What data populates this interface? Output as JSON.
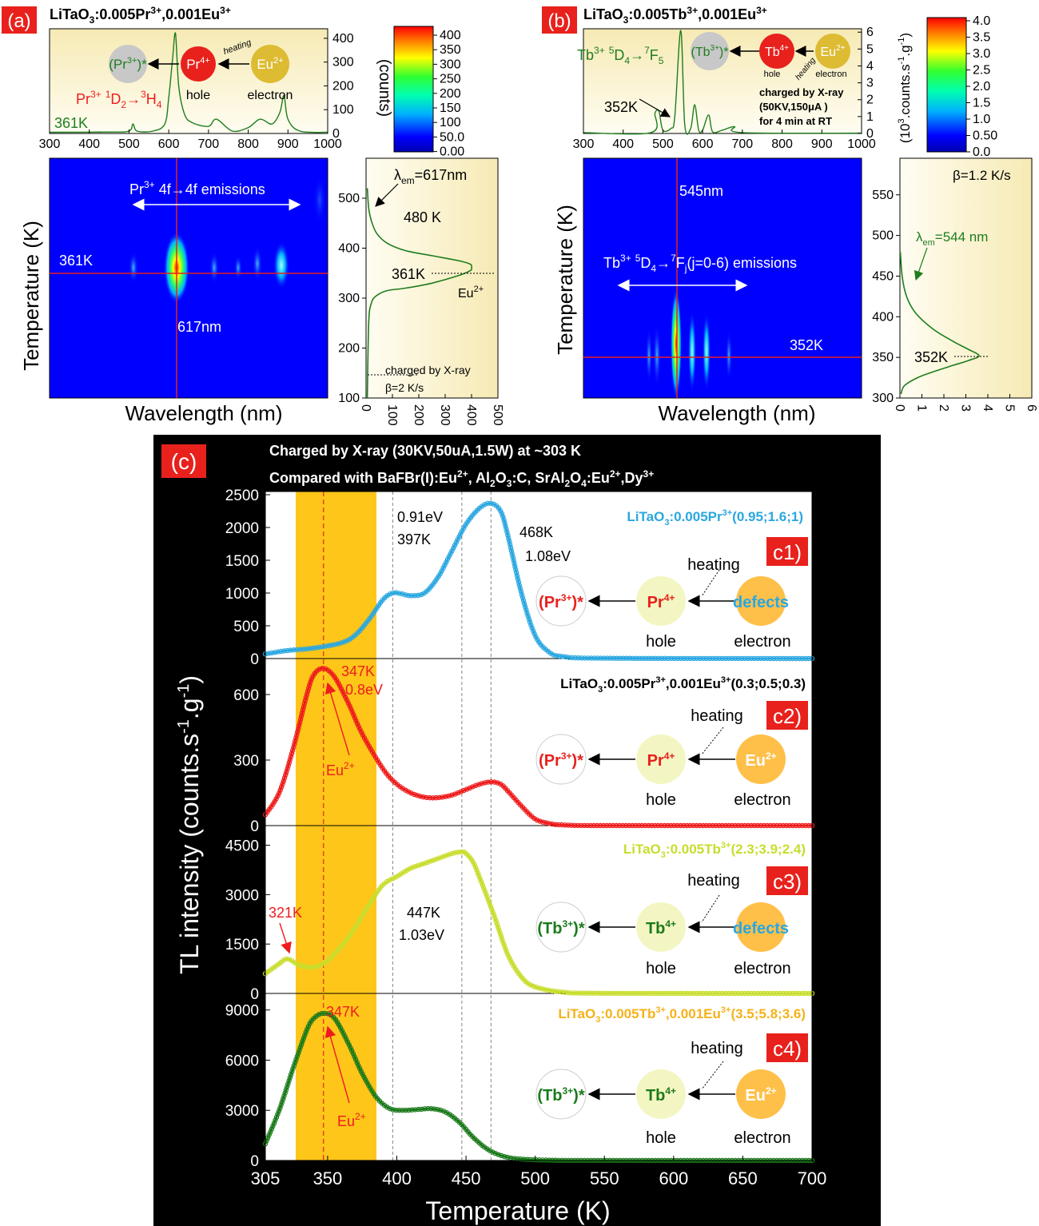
{
  "panel_a": {
    "tag": "(a)",
    "title": {
      "main": "LiTaO",
      "sub": "3",
      "rest": ":0.005Pr",
      "sup1": "3+",
      "rest2": ",0.001Eu",
      "sup2": "3+"
    },
    "spec_xticks": [
      "300",
      "400",
      "500",
      "600",
      "700",
      "800",
      "900",
      "1000"
    ],
    "spec_yticks": [
      "0",
      "100",
      "200",
      "300",
      "400"
    ],
    "cbar_label": "(counts)",
    "cbar_ticks": [
      "400",
      "350",
      "300",
      "250",
      "200",
      "150",
      "100",
      "50.0",
      "0.00"
    ],
    "map_yticks": [
      "100",
      "200",
      "300",
      "400",
      "500"
    ],
    "map_ylabel": "Temperature (K)",
    "map_xlabel": "Wavelength (nm)",
    "tl_xticks": [
      "0",
      "100",
      "200",
      "300",
      "400",
      "500"
    ],
    "labels": {
      "t361_spec": "361K",
      "transition_a": "Pr",
      "transition_b": "3+",
      "transition_c": " ",
      "transition_d": "1",
      "transition_e": "D",
      "transition_f": "2",
      "transition_g": "→",
      "transition_h": "3",
      "transition_i": "H",
      "transition_j": "4",
      "emissions_a": "Pr",
      "emissions_b": "3+",
      "emissions_c": " 4f→4f emissions",
      "t361_map": "361K",
      "nm617": "617nm",
      "lambda_a": "λ",
      "lambda_b": "em",
      "lambda_c": "=617nm",
      "k480": "480 K",
      "k361": "361K",
      "eu_a": "Eu",
      "eu_b": "2+",
      "charged": "charged by X-ray",
      "beta": "β=2 K/s",
      "prstar_a": "(Pr",
      "prstar_b": "3+",
      "prstar_c": ")*",
      "pr4_a": "Pr",
      "pr4_b": "4+",
      "eu2_a": "Eu",
      "eu2_b": "2+",
      "hole": "hole",
      "electron": "electron",
      "heating": "heating"
    }
  },
  "panel_b": {
    "tag": "(b)",
    "title": {
      "main": "LiTaO",
      "sub": "3",
      "rest": ":0.005Tb",
      "sup1": "3+",
      "rest2": ",0.001Eu",
      "sup2": "3+"
    },
    "spec_xticks": [
      "300",
      "400",
      "500",
      "600",
      "700",
      "800",
      "900",
      "1000"
    ],
    "spec_yticks": [
      "0",
      "1",
      "2",
      "3",
      "4",
      "5",
      "6"
    ],
    "cbar_label_a": "(10",
    "cbar_label_b": "3",
    "cbar_label_c": ".counts.s",
    "cbar_label_d": "-1",
    "cbar_label_e": ".g",
    "cbar_label_f": "-1",
    "cbar_label_g": ")",
    "cbar_ticks": [
      "4.0",
      "3.5",
      "3.0",
      "2.5",
      "2.0",
      "1.5",
      "1.0",
      "0.50",
      "0.0"
    ],
    "map_yticks": [
      "300",
      "350",
      "400",
      "450",
      "500",
      "550"
    ],
    "map_ylabel": "Temperature (K)",
    "map_xlabel": "Wavelength (nm)",
    "tl_xticks": [
      "0",
      "1",
      "2",
      "3",
      "4",
      "5",
      "6"
    ],
    "labels": {
      "trans_a": "Tb",
      "trans_b": "3+",
      "trans_c": " ",
      "trans_d": "5",
      "trans_e": "D",
      "trans_f": "4",
      "trans_g": "→",
      "trans_h": "7",
      "trans_i": "F",
      "trans_j": "5",
      "t352_spec": "352K",
      "charged1": "charged by X-ray",
      "charged2": "(50KV,150μA )",
      "charged3": "for 4 min at RT",
      "nm545": "545nm",
      "emis_a": "Tb",
      "emis_b": "3+",
      "emis_c": " ",
      "emis_d": "5",
      "emis_e": "D",
      "emis_f": "4",
      "emis_g": "→",
      "emis_h": "7",
      "emis_i": "F",
      "emis_j": "j",
      "emis_k": "(j=0-6) emissions",
      "t352_map": "352K",
      "beta": "β=1.2 K/s",
      "lambda_a": "λ",
      "lambda_b": "em",
      "lambda_c": "=544 nm",
      "k352": "352K",
      "tbstar_a": "(Tb",
      "tbstar_b": "3+",
      "tbstar_c": ")*",
      "tb4_a": "Tb",
      "tb4_b": "4+",
      "eu2_a": "Eu",
      "eu2_b": "2+",
      "hole": "hole",
      "electron": "electron",
      "heating": "heating"
    }
  },
  "panel_c": {
    "tag": "(c)",
    "title1": "Charged by X-ray (30KV,50uA,1.5W) at ~303 K",
    "title2_a": "Compared with BaFBr(I):Eu",
    "title2_b": "2+",
    "title2_c": ", Al",
    "title2_d": "2",
    "title2_e": "O",
    "title2_f": "3",
    "title2_g": ":C, SrAl",
    "title2_h": "2",
    "title2_i": "O",
    "title2_j": "4",
    "title2_k": ":Eu",
    "title2_l": "2+",
    "title2_m": ",Dy",
    "title2_n": "3+",
    "xlabel": "Temperature (K)",
    "ylabel_a": "TL intensity (counts.s",
    "ylabel_b": "-1",
    "ylabel_c": ".g",
    "ylabel_d": "-1",
    "ylabel_e": ")",
    "xticks": [
      "305",
      "350",
      "400",
      "450",
      "500",
      "550",
      "600",
      "650",
      "700"
    ],
    "subplots": [
      {
        "tag": "c1)",
        "yticks": [
          "0",
          "500",
          "1000",
          "1500",
          "2000",
          "2500"
        ],
        "legend_a": "LiTaO",
        "legend_b": "3",
        "legend_c": ":0.005Pr",
        "legend_d": "3+",
        "legend_e": "(0.95;1.6;1)",
        "ann": [
          "0.91eV",
          "397K",
          "468K",
          "1.08eV"
        ],
        "d_left_a": "(Pr",
        "d_left_b": "3+",
        "d_left_c": ")*",
        "d_mid_a": "Pr",
        "d_mid_b": "4+",
        "d_right": "defects",
        "hole": "hole",
        "electron": "electron",
        "heating": "heating"
      },
      {
        "tag": "c2)",
        "yticks": [
          "0",
          "300",
          "600"
        ],
        "legend_a": "LiTaO",
        "legend_b": "3",
        "legend_c": ":0.005Pr",
        "legend_d": "3+",
        "legend_e": ",0.001Eu",
        "legend_f": "3+",
        "legend_g": "(0.3;0.5;0.3)",
        "ann": [
          "347K",
          "0.8eV"
        ],
        "eu_a": "Eu",
        "eu_b": "2+",
        "d_left_a": "(Pr",
        "d_left_b": "3+",
        "d_left_c": ")*",
        "d_mid_a": "Pr",
        "d_mid_b": "4+",
        "d_right_a": "Eu",
        "d_right_b": "2+",
        "hole": "hole",
        "electron": "electron",
        "heating": "heating"
      },
      {
        "tag": "c3)",
        "yticks": [
          "0",
          "1500",
          "3000",
          "4500"
        ],
        "legend_a": "LiTaO",
        "legend_b": "3",
        "legend_c": ":0.005Tb",
        "legend_d": "3+",
        "legend_e": "(2.3;3.9;2.4)",
        "ann": [
          "321K",
          "447K",
          "1.03eV"
        ],
        "d_left_a": "(Tb",
        "d_left_b": "3+",
        "d_left_c": ")*",
        "d_mid_a": "Tb",
        "d_mid_b": "4+",
        "d_right": "defects",
        "hole": "hole",
        "electron": "electron",
        "heating": "heating"
      },
      {
        "tag": "c4)",
        "yticks": [
          "0",
          "3000",
          "6000",
          "9000"
        ],
        "legend_a": "LiTaO",
        "legend_b": "3",
        "legend_c": ":0.005Tb",
        "legend_d": "3+",
        "legend_e": ",0.001Eu",
        "legend_f": "3+",
        "legend_g": "(3.5;5.8;3.6)",
        "ann": [
          "347K"
        ],
        "eu_a": "Eu",
        "eu_b": "2+",
        "d_left_a": "(Tb",
        "d_left_b": "3+",
        "d_left_c": ")*",
        "d_mid_a": "Tb",
        "d_mid_b": "4+",
        "d_right_a": "Eu",
        "d_right_b": "2+",
        "hole": "hole",
        "electron": "electron",
        "heating": "heating"
      }
    ]
  },
  "colors": {
    "tag_red": "#e8211c",
    "green": "#1e7d1e",
    "cyan": "#2aa7e0",
    "red": "#ee1c1c",
    "yellowgreen": "#c8dd2c",
    "darkgreen": "#1b7a1b",
    "band": "#ffc61a",
    "bg_black": "#000000",
    "cream": "#fbf3cf"
  },
  "chart_data": [
    {
      "type": "line",
      "id": "a_spectrum",
      "xlabel": "",
      "ylabel": "",
      "xlim": [
        300,
        1000
      ],
      "ylim": [
        0,
        440
      ],
      "x": [
        300,
        450,
        500,
        510,
        520,
        560,
        590,
        600,
        610,
        617,
        625,
        640,
        660,
        700,
        720,
        760,
        800,
        830,
        860,
        880,
        890,
        900,
        930,
        1000
      ],
      "values": [
        5,
        6,
        10,
        40,
        10,
        10,
        40,
        150,
        320,
        420,
        200,
        80,
        45,
        30,
        60,
        10,
        25,
        60,
        40,
        90,
        160,
        60,
        10,
        5
      ]
    },
    {
      "type": "line",
      "id": "a_tl",
      "xlim": [
        0,
        500
      ],
      "ylim": [
        100,
        580
      ],
      "x": [
        5,
        10,
        20,
        40,
        80,
        150,
        250,
        350,
        395,
        400,
        395,
        350,
        250,
        150,
        80,
        40,
        20,
        10,
        5
      ],
      "values": [
        100,
        250,
        290,
        305,
        315,
        320,
        330,
        345,
        355,
        361,
        368,
        375,
        385,
        395,
        410,
        430,
        455,
        480,
        520
      ]
    },
    {
      "type": "line",
      "id": "b_spectrum",
      "xlim": [
        300,
        1000
      ],
      "ylim": [
        0,
        6.2
      ],
      "x": [
        300,
        470,
        480,
        490,
        500,
        520,
        530,
        545,
        555,
        570,
        580,
        590,
        600,
        615,
        625,
        650,
        680,
        700,
        1000
      ],
      "values": [
        0.05,
        0.05,
        1.2,
        1.3,
        0.2,
        0.3,
        1.0,
        6.1,
        0.5,
        0.3,
        1.7,
        0.2,
        0.2,
        1.1,
        0.1,
        0.2,
        0.4,
        0.05,
        0.02
      ]
    },
    {
      "type": "line",
      "id": "b_tl",
      "xlim": [
        0,
        6
      ],
      "ylim": [
        300,
        595
      ],
      "x": [
        0.05,
        0.2,
        0.8,
        1.6,
        2.4,
        3.1,
        3.6,
        3.1,
        2.4,
        1.5,
        0.7,
        0.3,
        0.1,
        0.02
      ],
      "values": [
        305,
        315,
        325,
        333,
        340,
        346,
        352,
        360,
        370,
        385,
        405,
        425,
        450,
        480
      ]
    },
    {
      "type": "scatter",
      "id": "c1",
      "series_name": "LiTaO3:0.005Pr3+(0.95;1.6;1)",
      "xlim": [
        305,
        700
      ],
      "ylim": [
        0,
        2500
      ],
      "x": [
        305,
        320,
        340,
        360,
        370,
        380,
        390,
        397,
        403,
        410,
        420,
        430,
        440,
        450,
        460,
        468,
        475,
        480,
        490,
        500,
        510,
        520,
        550,
        700
      ],
      "values": [
        70,
        120,
        160,
        240,
        360,
        600,
        900,
        1000,
        990,
        960,
        1000,
        1250,
        1650,
        2050,
        2300,
        2370,
        2250,
        1900,
        1000,
        350,
        100,
        30,
        5,
        0
      ]
    },
    {
      "type": "scatter",
      "id": "c2",
      "series_name": "LiTaO3:0.005Pr3+,0.001Eu3+(0.3;0.5;0.3)",
      "xlim": [
        305,
        700
      ],
      "ylim": [
        0,
        750
      ],
      "x": [
        305,
        315,
        325,
        335,
        340,
        347,
        355,
        365,
        375,
        390,
        400,
        410,
        420,
        430,
        440,
        450,
        460,
        468,
        475,
        480,
        490,
        500,
        510,
        520,
        550,
        700
      ],
      "values": [
        50,
        150,
        350,
        600,
        690,
        720,
        680,
        560,
        420,
        260,
        190,
        150,
        130,
        128,
        140,
        165,
        190,
        200,
        190,
        160,
        90,
        30,
        10,
        3,
        0,
        0
      ]
    },
    {
      "type": "scatter",
      "id": "c3",
      "series_name": "LiTaO3:0.005Tb3+(2.3;3.9;2.4)",
      "xlim": [
        305,
        700
      ],
      "ylim": [
        0,
        5000
      ],
      "x": [
        305,
        315,
        321,
        330,
        340,
        350,
        365,
        380,
        390,
        400,
        410,
        420,
        430,
        440,
        447,
        450,
        455,
        460,
        470,
        480,
        490,
        500,
        520,
        550,
        700
      ],
      "values": [
        600,
        900,
        1050,
        850,
        800,
        1000,
        1700,
        2700,
        3300,
        3550,
        3800,
        3950,
        4100,
        4250,
        4300,
        4250,
        4000,
        3500,
        2400,
        1200,
        500,
        200,
        40,
        5,
        0
      ]
    },
    {
      "type": "scatter",
      "id": "c4",
      "series_name": "LiTaO3:0.005Tb3+,0.001Eu3+(3.5;5.8;3.6)",
      "xlim": [
        305,
        700
      ],
      "ylim": [
        0,
        9800
      ],
      "x": [
        305,
        315,
        325,
        335,
        340,
        347,
        355,
        365,
        375,
        385,
        395,
        405,
        415,
        425,
        435,
        445,
        455,
        465,
        475,
        485,
        500,
        520,
        550,
        700
      ],
      "values": [
        1000,
        3000,
        5500,
        7800,
        8500,
        8800,
        8500,
        7000,
        5200,
        3800,
        3100,
        3000,
        3050,
        3100,
        2900,
        2300,
        1400,
        700,
        300,
        120,
        40,
        10,
        3,
        0
      ]
    }
  ]
}
